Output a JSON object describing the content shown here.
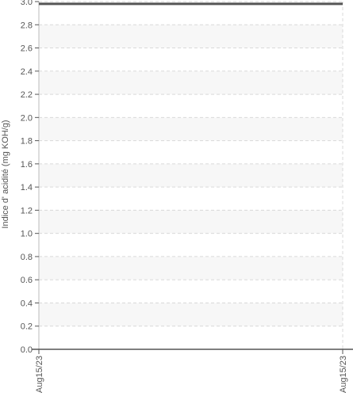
{
  "chart_data": {
    "type": "line",
    "title": "",
    "xlabel": "",
    "ylabel": "Indice d' acidité (mg KOH/g)",
    "ylim": [
      0,
      3.0
    ],
    "yticks": [
      0.0,
      0.2,
      0.4,
      0.6,
      0.8,
      1.0,
      1.2,
      1.4,
      1.6,
      1.8,
      2.0,
      2.2,
      2.4,
      2.6,
      2.8,
      3.0
    ],
    "ytick_labels": [
      "0.0",
      "0.2",
      "0.4",
      "0.6",
      "0.8",
      "1.0",
      "1.2",
      "1.4",
      "1.6",
      "1.8",
      "2.0",
      "2.2",
      "2.4",
      "2.6",
      "2.8",
      "3.0"
    ],
    "x_tick_labels": [
      "Aug15/23",
      "Aug15/23"
    ],
    "grid": "horizontal dashed, alternating light bands",
    "series": [
      {
        "values": [
          2.98,
          2.98
        ],
        "color": "#555555"
      }
    ]
  }
}
